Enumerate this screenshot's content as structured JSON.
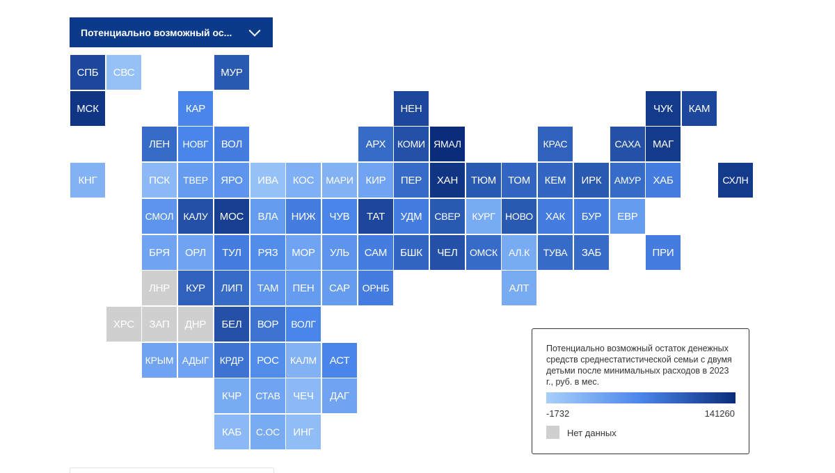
{
  "dropdown": {
    "label": "Потенциально возможный ос...",
    "icon": "chevron-down-icon"
  },
  "legend": {
    "title": "Потенциально возможный остаток денежных средств среднестатистической семьи с двумя детьми после минимальных расходов в 2023 г., руб. в мес.",
    "min_label": "-1732",
    "max_label": "141260",
    "no_data_label": "Нет данных",
    "colors": {
      "low": "#a8cffb",
      "mid": "#4a86ea",
      "high": "#0a2c7a",
      "no_data": "#cfcfcf"
    }
  },
  "regions": [
    {
      "code": "СПБ",
      "row": 0,
      "col": 0,
      "level": 0.85
    },
    {
      "code": "СВС",
      "row": 0,
      "col": 1,
      "level": 0.1
    },
    {
      "code": "МУР",
      "row": 0,
      "col": 4,
      "level": 0.75
    },
    {
      "code": "МСК",
      "row": 1,
      "col": 0,
      "level": 0.95
    },
    {
      "code": "КАР",
      "row": 1,
      "col": 3,
      "level": 0.5
    },
    {
      "code": "НЕН",
      "row": 1,
      "col": 9,
      "level": 0.85
    },
    {
      "code": "ЧУК",
      "row": 1,
      "col": 16,
      "level": 0.92
    },
    {
      "code": "КАМ",
      "row": 1,
      "col": 17,
      "level": 0.85
    },
    {
      "code": "ЛЕН",
      "row": 2,
      "col": 2,
      "level": 0.65
    },
    {
      "code": "НОВГ",
      "row": 2,
      "col": 3,
      "level": 0.5
    },
    {
      "code": "ВОЛ",
      "row": 2,
      "col": 4,
      "level": 0.55
    },
    {
      "code": "АРХ",
      "row": 2,
      "col": 8,
      "level": 0.65
    },
    {
      "code": "КОМИ",
      "row": 2,
      "col": 9,
      "level": 0.8
    },
    {
      "code": "ЯМАЛ",
      "row": 2,
      "col": 10,
      "level": 1.0
    },
    {
      "code": "КРАС",
      "row": 2,
      "col": 13,
      "level": 0.7
    },
    {
      "code": "САХА",
      "row": 2,
      "col": 15,
      "level": 0.8
    },
    {
      "code": "МАГ",
      "row": 2,
      "col": 16,
      "level": 0.92
    },
    {
      "code": "КНГ",
      "row": 3,
      "col": 0,
      "level": 0.2
    },
    {
      "code": "ПСК",
      "row": 3,
      "col": 2,
      "level": 0.15
    },
    {
      "code": "ТВЕР",
      "row": 3,
      "col": 3,
      "level": 0.35
    },
    {
      "code": "ЯРО",
      "row": 3,
      "col": 4,
      "level": 0.4
    },
    {
      "code": "ИВА",
      "row": 3,
      "col": 5,
      "level": 0.1
    },
    {
      "code": "КОС",
      "row": 3,
      "col": 6,
      "level": 0.22
    },
    {
      "code": "МАРИ",
      "row": 3,
      "col": 7,
      "level": 0.2
    },
    {
      "code": "КИР",
      "row": 3,
      "col": 8,
      "level": 0.3
    },
    {
      "code": "ПЕР",
      "row": 3,
      "col": 9,
      "level": 0.65
    },
    {
      "code": "ХАН",
      "row": 3,
      "col": 10,
      "level": 0.95
    },
    {
      "code": "ТЮМ",
      "row": 3,
      "col": 11,
      "level": 0.75
    },
    {
      "code": "ТОМ",
      "row": 3,
      "col": 12,
      "level": 0.68
    },
    {
      "code": "КЕМ",
      "row": 3,
      "col": 13,
      "level": 0.68
    },
    {
      "code": "ИРК",
      "row": 3,
      "col": 14,
      "level": 0.75
    },
    {
      "code": "АМУР",
      "row": 3,
      "col": 15,
      "level": 0.65
    },
    {
      "code": "ХАБ",
      "row": 3,
      "col": 16,
      "level": 0.55
    },
    {
      "code": "СХЛН",
      "row": 3,
      "col": 18,
      "level": 0.92
    },
    {
      "code": "СМОЛ",
      "row": 4,
      "col": 2,
      "level": 0.4
    },
    {
      "code": "КАЛУ",
      "row": 4,
      "col": 3,
      "level": 0.8
    },
    {
      "code": "МОС",
      "row": 4,
      "col": 4,
      "level": 0.9
    },
    {
      "code": "ВЛА",
      "row": 4,
      "col": 5,
      "level": 0.35
    },
    {
      "code": "НИЖ",
      "row": 4,
      "col": 6,
      "level": 0.55
    },
    {
      "code": "ЧУВ",
      "row": 4,
      "col": 7,
      "level": 0.5
    },
    {
      "code": "ТАТ",
      "row": 4,
      "col": 8,
      "level": 0.85
    },
    {
      "code": "УДМ",
      "row": 4,
      "col": 9,
      "level": 0.55
    },
    {
      "code": "СВЕР",
      "row": 4,
      "col": 10,
      "level": 0.75
    },
    {
      "code": "КУРГ",
      "row": 4,
      "col": 11,
      "level": 0.25
    },
    {
      "code": "НОВО",
      "row": 4,
      "col": 12,
      "level": 0.75
    },
    {
      "code": "ХАК",
      "row": 4,
      "col": 13,
      "level": 0.55
    },
    {
      "code": "БУР",
      "row": 4,
      "col": 14,
      "level": 0.55
    },
    {
      "code": "ЕВР",
      "row": 4,
      "col": 15,
      "level": 0.35
    },
    {
      "code": "БРЯ",
      "row": 5,
      "col": 2,
      "level": 0.3
    },
    {
      "code": "ОРЛ",
      "row": 5,
      "col": 3,
      "level": 0.3
    },
    {
      "code": "ТУЛ",
      "row": 5,
      "col": 4,
      "level": 0.55
    },
    {
      "code": "РЯЗ",
      "row": 5,
      "col": 5,
      "level": 0.45
    },
    {
      "code": "МОР",
      "row": 5,
      "col": 6,
      "level": 0.3
    },
    {
      "code": "УЛЬ",
      "row": 5,
      "col": 7,
      "level": 0.4
    },
    {
      "code": "САМ",
      "row": 5,
      "col": 8,
      "level": 0.55
    },
    {
      "code": "БШК",
      "row": 5,
      "col": 9,
      "level": 0.68
    },
    {
      "code": "ЧЕЛ",
      "row": 5,
      "col": 10,
      "level": 0.8
    },
    {
      "code": "ОМСК",
      "row": 5,
      "col": 11,
      "level": 0.65
    },
    {
      "code": "АЛ.К",
      "row": 5,
      "col": 12,
      "level": 0.25
    },
    {
      "code": "ТУВА",
      "row": 5,
      "col": 13,
      "level": 0.65
    },
    {
      "code": "ЗАБ",
      "row": 5,
      "col": 14,
      "level": 0.65
    },
    {
      "code": "ПРИ",
      "row": 5,
      "col": 16,
      "level": 0.55
    },
    {
      "code": "ЛНР",
      "row": 6,
      "col": 2,
      "level": -1
    },
    {
      "code": "КУР",
      "row": 6,
      "col": 3,
      "level": 0.7
    },
    {
      "code": "ЛИП",
      "row": 6,
      "col": 4,
      "level": 0.65
    },
    {
      "code": "ТАМ",
      "row": 6,
      "col": 5,
      "level": 0.4
    },
    {
      "code": "ПЕН",
      "row": 6,
      "col": 6,
      "level": 0.35
    },
    {
      "code": "САР",
      "row": 6,
      "col": 7,
      "level": 0.35
    },
    {
      "code": "ОРНБ",
      "row": 6,
      "col": 8,
      "level": 0.55
    },
    {
      "code": "АЛТ",
      "row": 6,
      "col": 12,
      "level": 0.25
    },
    {
      "code": "ХРС",
      "row": 7,
      "col": 1,
      "level": -1
    },
    {
      "code": "ЗАП",
      "row": 7,
      "col": 2,
      "level": -1
    },
    {
      "code": "ДНР",
      "row": 7,
      "col": 3,
      "level": -1
    },
    {
      "code": "БЕЛ",
      "row": 7,
      "col": 4,
      "level": 0.8
    },
    {
      "code": "ВОР",
      "row": 7,
      "col": 5,
      "level": 0.6
    },
    {
      "code": "ВОЛГ",
      "row": 7,
      "col": 6,
      "level": 0.5
    },
    {
      "code": "КРЫМ",
      "row": 8,
      "col": 2,
      "level": 0.3
    },
    {
      "code": "АДЫГ",
      "row": 8,
      "col": 3,
      "level": 0.3
    },
    {
      "code": "КРДР",
      "row": 8,
      "col": 4,
      "level": 0.6
    },
    {
      "code": "РОС",
      "row": 8,
      "col": 5,
      "level": 0.45
    },
    {
      "code": "КАЛМ",
      "row": 8,
      "col": 6,
      "level": 0.2
    },
    {
      "code": "АСТ",
      "row": 8,
      "col": 7,
      "level": 0.5
    },
    {
      "code": "КЧР",
      "row": 9,
      "col": 4,
      "level": 0.25
    },
    {
      "code": "СТАВ",
      "row": 9,
      "col": 5,
      "level": 0.3
    },
    {
      "code": "ЧЕЧ",
      "row": 9,
      "col": 6,
      "level": 0.15
    },
    {
      "code": "ДАГ",
      "row": 9,
      "col": 7,
      "level": 0.3
    },
    {
      "code": "КАБ",
      "row": 10,
      "col": 4,
      "level": 0.15
    },
    {
      "code": "С.ОС",
      "row": 10,
      "col": 5,
      "level": 0.25
    },
    {
      "code": "ИНГ",
      "row": 10,
      "col": 6,
      "level": 0.12
    }
  ]
}
